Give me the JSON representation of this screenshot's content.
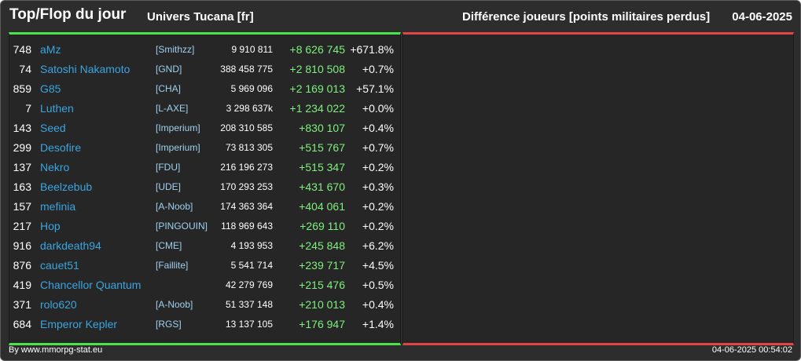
{
  "header": {
    "title": "Top/Flop du jour",
    "universe": "Univers Tucana [fr]",
    "subtitle": "Différence joueurs [points militaires perdus]",
    "date": "04-06-2025"
  },
  "colors": {
    "top_accent": "#4be34b",
    "flop_accent": "#e04444",
    "name": "#3aa5e0",
    "positive": "#7ef07e"
  },
  "rows": [
    {
      "rank": "748",
      "name": "aMz",
      "ally": "[Smithzz]",
      "points": "9 910 811",
      "diff": "+8 626 745",
      "pct": "+671.8%"
    },
    {
      "rank": "74",
      "name": "Satoshi Nakamoto",
      "ally": "[GND]",
      "points": "388 458 775",
      "diff": "+2 810 508",
      "pct": "+0.7%"
    },
    {
      "rank": "859",
      "name": "G85",
      "ally": "[CHA]",
      "points": "5 969 096",
      "diff": "+2 169 013",
      "pct": "+57.1%"
    },
    {
      "rank": "7",
      "name": "Luthen",
      "ally": "[L-AXE]",
      "points": "3 298 637k",
      "diff": "+1 234 022",
      "pct": "+0.0%"
    },
    {
      "rank": "143",
      "name": "Seed",
      "ally": "[Imperium]",
      "points": "208 310 585",
      "diff": "+830 107",
      "pct": "+0.4%"
    },
    {
      "rank": "299",
      "name": "Desofire",
      "ally": "[Imperium]",
      "points": "73 813 305",
      "diff": "+515 767",
      "pct": "+0.7%"
    },
    {
      "rank": "137",
      "name": "Nekro",
      "ally": "[FDU]",
      "points": "216 196 273",
      "diff": "+515 347",
      "pct": "+0.2%"
    },
    {
      "rank": "163",
      "name": "Beelzebub",
      "ally": "[UDE]",
      "points": "170 293 253",
      "diff": "+431 670",
      "pct": "+0.3%"
    },
    {
      "rank": "157",
      "name": "mefinia",
      "ally": "[A-Noob]",
      "points": "174 363 364",
      "diff": "+404 061",
      "pct": "+0.2%"
    },
    {
      "rank": "217",
      "name": "Hop",
      "ally": "[PINGOUIN]",
      "points": "118 969 643",
      "diff": "+269 110",
      "pct": "+0.2%"
    },
    {
      "rank": "916",
      "name": "darkdeath94",
      "ally": "[CME]",
      "points": "4 193 953",
      "diff": "+245 848",
      "pct": "+6.2%"
    },
    {
      "rank": "876",
      "name": "cauet51",
      "ally": "[Faillite]",
      "points": "5 541 714",
      "diff": "+239 717",
      "pct": "+4.5%"
    },
    {
      "rank": "419",
      "name": "Chancellor Quantum",
      "ally": "",
      "points": "42 279 769",
      "diff": "+215 476",
      "pct": "+0.5%"
    },
    {
      "rank": "371",
      "name": "rolo620",
      "ally": "[A-Noob]",
      "points": "51 337 148",
      "diff": "+210 013",
      "pct": "+0.4%"
    },
    {
      "rank": "684",
      "name": "Emperor Kepler",
      "ally": "[RGS]",
      "points": "13 137 105",
      "diff": "+176 947",
      "pct": "+1.4%"
    }
  ],
  "footer": {
    "source": "By www.mmorpg-stat.eu",
    "timestamp": "04-06-2025 00:54:02"
  }
}
